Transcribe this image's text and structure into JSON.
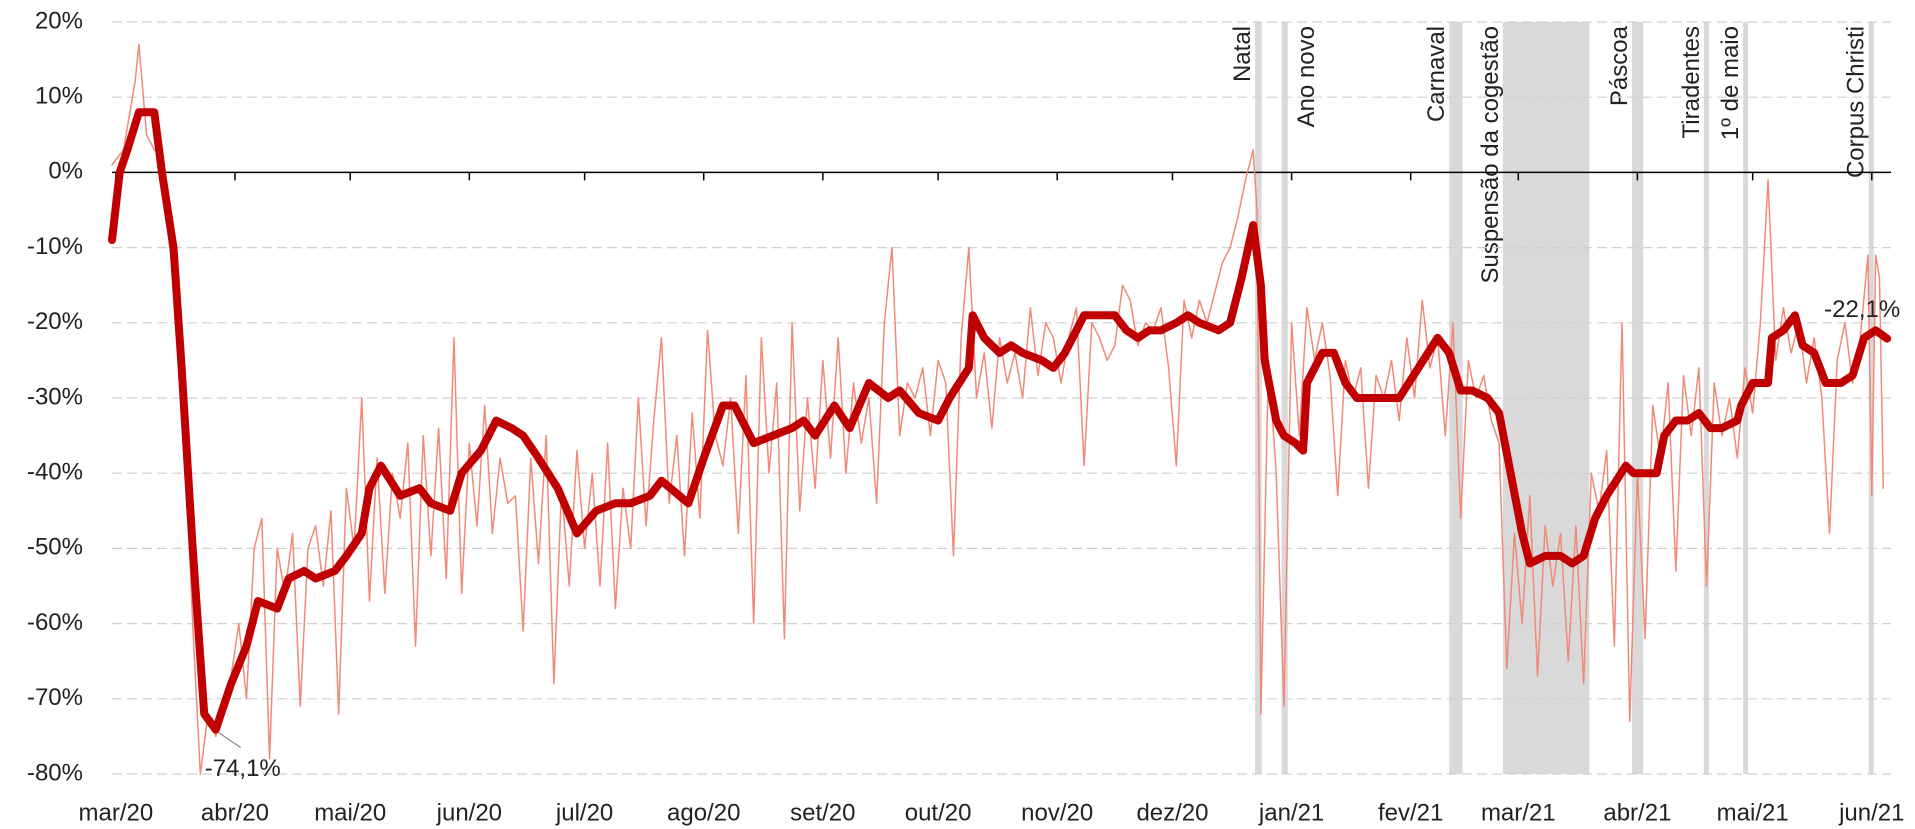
{
  "chart_data": {
    "type": "line",
    "xlim": [
      -1,
      462
    ],
    "xticks": [
      {
        "value": 0,
        "label": "mar/20"
      },
      {
        "value": 31,
        "label": "abr/20"
      },
      {
        "value": 61,
        "label": "mai/20"
      },
      {
        "value": 92,
        "label": "jun/20"
      },
      {
        "value": 122,
        "label": "jul/20"
      },
      {
        "value": 153,
        "label": "ago/20"
      },
      {
        "value": 184,
        "label": "set/20"
      },
      {
        "value": 214,
        "label": "out/20"
      },
      {
        "value": 245,
        "label": "nov/20"
      },
      {
        "value": 275,
        "label": "dez/20"
      },
      {
        "value": 306,
        "label": "jan/21"
      },
      {
        "value": 337,
        "label": "fev/21"
      },
      {
        "value": 365,
        "label": "mar/21"
      },
      {
        "value": 396,
        "label": "abr/21"
      },
      {
        "value": 426,
        "label": "mai/21"
      },
      {
        "value": 457,
        "label": "jun/21"
      }
    ],
    "ylim": [
      -80,
      20
    ],
    "yticks": [
      {
        "value": -80,
        "label": "-80%"
      },
      {
        "value": -70,
        "label": "-70%"
      },
      {
        "value": -60,
        "label": "-60%"
      },
      {
        "value": -50,
        "label": "-50%"
      },
      {
        "value": -40,
        "label": "-40%"
      },
      {
        "value": -30,
        "label": "-30%"
      },
      {
        "value": -20,
        "label": "-20%"
      },
      {
        "value": -10,
        "label": "-10%"
      },
      {
        "value": 0,
        "label": "0%"
      },
      {
        "value": 10,
        "label": "10%"
      },
      {
        "value": 20,
        "label": "20%"
      }
    ],
    "grid": true,
    "regions": [
      {
        "label": "Natal",
        "start": 296.5,
        "end": 298.2
      },
      {
        "label": "Ano novo",
        "start": 303.4,
        "end": 305
      },
      {
        "label": "Carnaval",
        "start": 347,
        "end": 350.5
      },
      {
        "label": "Suspensão da cogestão",
        "start": 361,
        "end": 383.5
      },
      {
        "label": "Páscoa",
        "start": 394.6,
        "end": 397.5
      },
      {
        "label": "Tiradentes",
        "start": 413.3,
        "end": 414.6
      },
      {
        "label": "1º de maio",
        "start": 423.5,
        "end": 424.8
      },
      {
        "label": "Corpus Christi",
        "start": 456.2,
        "end": 457.5
      }
    ],
    "region_color": "#d9d9d9",
    "series": [
      {
        "color": "#f08a78",
        "width": 1.5,
        "x": [
          -1,
          2,
          5,
          6,
          8,
          10,
          12,
          14,
          16,
          18,
          20,
          22,
          24,
          26,
          28,
          30,
          32,
          34,
          36,
          38,
          40,
          42,
          44,
          46,
          48,
          50,
          52,
          54,
          56,
          58,
          60,
          62,
          64,
          66,
          68,
          70,
          72,
          74,
          76,
          78,
          80,
          82,
          84,
          86,
          88,
          90,
          92,
          94,
          96,
          98,
          100,
          102,
          104,
          106,
          108,
          110,
          112,
          114,
          116,
          118,
          120,
          122,
          124,
          126,
          128,
          130,
          132,
          134,
          136,
          138,
          140,
          142,
          144,
          146,
          148,
          150,
          152,
          154,
          156,
          158,
          160,
          162,
          164,
          166,
          168,
          170,
          172,
          174,
          176,
          178,
          180,
          182,
          184,
          186,
          188,
          190,
          192,
          194,
          196,
          198,
          200,
          202,
          204,
          206,
          208,
          210,
          212,
          214,
          216,
          218,
          220,
          222,
          224,
          226,
          228,
          230,
          232,
          234,
          236,
          238,
          240,
          242,
          244,
          246,
          248,
          250,
          252,
          254,
          256,
          258,
          260,
          262,
          264,
          266,
          268,
          270,
          272,
          274,
          276,
          278,
          280,
          282,
          284,
          286,
          288,
          290,
          292,
          294,
          296,
          297,
          298,
          300,
          302,
          304,
          306,
          308,
          310,
          312,
          314,
          316,
          318,
          320,
          322,
          324,
          326,
          328,
          330,
          332,
          334,
          336,
          338,
          340,
          342,
          344,
          346,
          348,
          350,
          352,
          354,
          356,
          358,
          360,
          362,
          364,
          366,
          368,
          370,
          372,
          374,
          376,
          378,
          380,
          382,
          384,
          386,
          388,
          390,
          392,
          394,
          396,
          398,
          400,
          402,
          404,
          406,
          408,
          410,
          412,
          414,
          416,
          418,
          420,
          422,
          424,
          426,
          428,
          430,
          432,
          434,
          436,
          438,
          440,
          442,
          444,
          446,
          448,
          450,
          452,
          454,
          456,
          457,
          458,
          459,
          460
        ],
        "values": [
          1,
          3,
          12,
          17,
          5,
          3,
          2,
          -10,
          -15,
          -35,
          -60,
          -80,
          -72,
          -75,
          -70,
          -67,
          -60,
          -70,
          -50,
          -46,
          -78,
          -50,
          -56,
          -48,
          -71,
          -50,
          -47,
          -55,
          -45,
          -72,
          -42,
          -50,
          -30,
          -57,
          -38,
          -56,
          -40,
          -46,
          -36,
          -63,
          -35,
          -51,
          -34,
          -54,
          -22,
          -56,
          -36,
          -47,
          -31,
          -48,
          -38,
          -44,
          -43,
          -61,
          -38,
          -52,
          -35,
          -68,
          -42,
          -55,
          -37,
          -50,
          -40,
          -55,
          -36,
          -58,
          -42,
          -50,
          -30,
          -47,
          -33,
          -22,
          -44,
          -35,
          -51,
          -32,
          -46,
          -21,
          -35,
          -39,
          -30,
          -48,
          -27,
          -60,
          -22,
          -40,
          -28,
          -62,
          -20,
          -45,
          -30,
          -42,
          -25,
          -38,
          -22,
          -40,
          -28,
          -36,
          -30,
          -44,
          -20,
          -10,
          -35,
          -28,
          -30,
          -26,
          -35,
          -25,
          -28,
          -51,
          -22,
          -10,
          -30,
          -24,
          -34,
          -22,
          -28,
          -24,
          -30,
          -18,
          -27,
          -20,
          -22,
          -28,
          -22,
          -18,
          -39,
          -20,
          -22,
          -25,
          -23,
          -15,
          -17,
          -23,
          -20,
          -21,
          -18,
          -26,
          -39,
          -17,
          -22,
          -17,
          -20,
          -16,
          -12,
          -10,
          -6,
          -1,
          3,
          -5,
          -72,
          -25,
          -40,
          -71,
          -20,
          -35,
          -18,
          -25,
          -20,
          -27,
          -43,
          -25,
          -30,
          -26,
          -42,
          -27,
          -30,
          -25,
          -33,
          -22,
          -30,
          -17,
          -26,
          -22,
          -35,
          -20,
          -46,
          -25,
          -30,
          -27,
          -33,
          -36,
          -66,
          -48,
          -60,
          -43,
          -67,
          -47,
          -55,
          -48,
          -65,
          -47,
          -68,
          -40,
          -45,
          -37,
          -63,
          -20,
          -73,
          -40,
          -62,
          -31,
          -38,
          -28,
          -53,
          -27,
          -35,
          -26,
          -55,
          -28,
          -35,
          -30,
          -38,
          -26,
          -32,
          -20,
          -1,
          -25,
          -18,
          -24,
          -20,
          -28,
          -22,
          -30,
          -48,
          -25,
          -20,
          -28,
          -22,
          -11,
          -43,
          -11,
          -14,
          -42
        ]
      },
      {
        "color": "#c00000",
        "width": 8,
        "x": [
          -1,
          1,
          3,
          6,
          10,
          12,
          15,
          17,
          20,
          23,
          26,
          30,
          34,
          37,
          42,
          45,
          49,
          52,
          57,
          60,
          64,
          66,
          69,
          74,
          79,
          82,
          87,
          90,
          95,
          99,
          103,
          106,
          110,
          115,
          120,
          125,
          130,
          134,
          139,
          142,
          149,
          153,
          158,
          161,
          166,
          171,
          176,
          179,
          182,
          187,
          191,
          196,
          201,
          204,
          209,
          214,
          217,
          222,
          223,
          226,
          230,
          233,
          236,
          241,
          244,
          247,
          250,
          252,
          257,
          260,
          263,
          266,
          269,
          272,
          276,
          279,
          282,
          287,
          290,
          293,
          296,
          298,
          299,
          302,
          304,
          307,
          309,
          310,
          314,
          317,
          320,
          323,
          326,
          330,
          334,
          339,
          344,
          347,
          350,
          353,
          357,
          360,
          363,
          366,
          368,
          372,
          376,
          379,
          382,
          385,
          388,
          393,
          395,
          398,
          401,
          403,
          406,
          409,
          412,
          415,
          418,
          422,
          423,
          426,
          430,
          431,
          434,
          437,
          439,
          442,
          445,
          449,
          452,
          455,
          458,
          461
        ],
        "values": [
          -9,
          0,
          3,
          8,
          8,
          0,
          -10,
          -25,
          -50,
          -72,
          -74.1,
          -68,
          -63,
          -57,
          -58,
          -54,
          -53,
          -54,
          -53,
          -51,
          -48,
          -42,
          -39,
          -43,
          -42,
          -44,
          -45,
          -40,
          -37,
          -33,
          -34,
          -35,
          -38,
          -42,
          -48,
          -45,
          -44,
          -44,
          -43,
          -41,
          -44,
          -38,
          -31,
          -31,
          -36,
          -35,
          -34,
          -33,
          -35,
          -31,
          -34,
          -28,
          -30,
          -29,
          -32,
          -33,
          -30,
          -26,
          -19,
          -22,
          -24,
          -23,
          -24,
          -25,
          -26,
          -24,
          -21,
          -19,
          -19,
          -19,
          -21,
          -22,
          -21,
          -21,
          -20,
          -19,
          -20,
          -21,
          -20,
          -14,
          -7,
          -15,
          -25,
          -33,
          -35,
          -36,
          -37,
          -28,
          -24,
          -24,
          -28,
          -30,
          -30,
          -30,
          -30,
          -26,
          -22,
          -24,
          -29,
          -29,
          -30,
          -32,
          -40,
          -48,
          -52,
          -51,
          -51,
          -52,
          -51,
          -46,
          -43,
          -39,
          -40,
          -40,
          -40,
          -35,
          -33,
          -33,
          -32,
          -34,
          -34,
          -33,
          -31,
          -28,
          -28,
          -22,
          -21,
          -19,
          -23,
          -24,
          -28,
          -28,
          -27,
          -22,
          -21,
          -22.1
        ]
      }
    ],
    "annotations": [
      {
        "text": "-74,1%",
        "x": 26,
        "y": -74.1
      },
      {
        "text": "-22,1%",
        "x": 461,
        "y": -22.1
      }
    ]
  }
}
